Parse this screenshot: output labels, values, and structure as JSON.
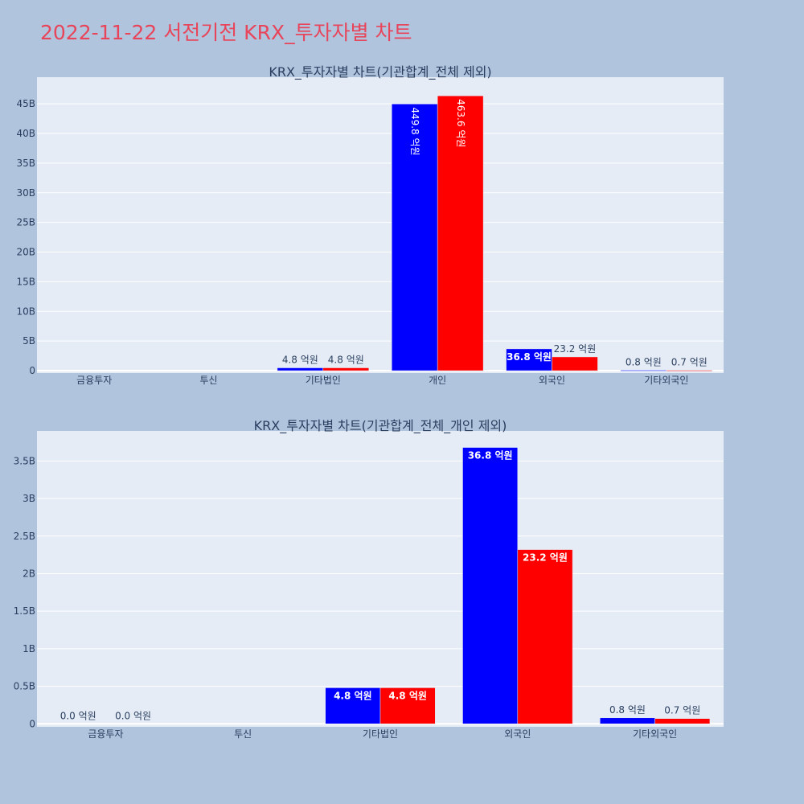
{
  "page_title": "2022-11-22 서전기전 KRX_투자자별 차트",
  "colors": {
    "series_a": "#0000ff",
    "series_b": "#ff0000",
    "plot_bg": "#e5ecf6",
    "page_bg": "#b0c4de",
    "title": "#e8455a"
  },
  "chart_data": [
    {
      "type": "bar",
      "title": "KRX_투자자별 차트(기관합계_전체 제외)",
      "categories": [
        "금융투자",
        "투신",
        "기타법인",
        "개인",
        "외국인",
        "기타외국인"
      ],
      "series": [
        {
          "values": [
            0,
            0,
            480000000,
            44980000000,
            3680000000,
            80000000
          ],
          "labels": [
            "",
            "",
            "4.8 억원",
            "449.8 억원",
            "36.8 억원",
            "0.8 억원"
          ]
        },
        {
          "values": [
            0,
            0,
            480000000,
            46360000000,
            2320000000,
            70000000
          ],
          "labels": [
            "",
            "",
            "4.8 억원",
            "463.6 억원",
            "23.2 억원",
            "0.7 억원"
          ]
        }
      ],
      "ylim": [
        -400000000,
        49500000000
      ],
      "yticks": [
        0,
        5000000000,
        10000000000,
        15000000000,
        20000000000,
        25000000000,
        30000000000,
        35000000000,
        40000000000,
        45000000000
      ],
      "ytick_labels": [
        "0",
        "5B",
        "10B",
        "15B",
        "20B",
        "25B",
        "30B",
        "35B",
        "40B",
        "45B"
      ],
      "grid": true,
      "legend": "none"
    },
    {
      "type": "bar",
      "title": "KRX_투자자별 차트(기관합계_전체_개인 제외)",
      "categories": [
        "금융투자",
        "투신",
        "기타법인",
        "외국인",
        "기타외국인"
      ],
      "series": [
        {
          "values": [
            0,
            0,
            480000000,
            3680000000,
            80000000
          ],
          "labels": [
            "0.0 억원",
            "",
            "4.8 억원",
            "36.8 억원",
            "0.8 억원"
          ]
        },
        {
          "values": [
            0,
            0,
            480000000,
            2320000000,
            70000000
          ],
          "labels": [
            "0.0 억원",
            "",
            "4.8 억원",
            "23.2 억원",
            "0.7 억원"
          ]
        }
      ],
      "ylim": [
        -40000000,
        3900000000
      ],
      "yticks": [
        0,
        500000000,
        1000000000,
        1500000000,
        2000000000,
        2500000000,
        3000000000,
        3500000000
      ],
      "ytick_labels": [
        "0",
        "0.5B",
        "1B",
        "1.5B",
        "2B",
        "2.5B",
        "3B",
        "3.5B"
      ],
      "grid": true,
      "legend": "none"
    }
  ]
}
